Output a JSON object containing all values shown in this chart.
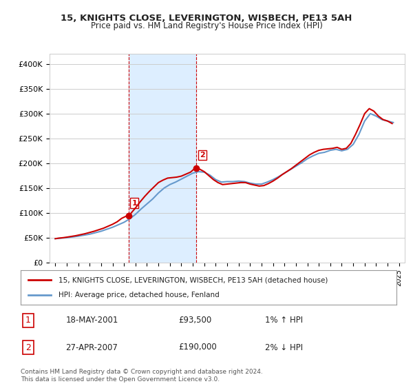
{
  "title": "15, KNIGHTS CLOSE, LEVERINGTON, WISBECH, PE13 5AH",
  "subtitle": "Price paid vs. HM Land Registry's House Price Index (HPI)",
  "legend_line1": "15, KNIGHTS CLOSE, LEVERINGTON, WISBECH, PE13 5AH (detached house)",
  "legend_line2": "HPI: Average price, detached house, Fenland",
  "footer1": "Contains HM Land Registry data © Crown copyright and database right 2024.",
  "footer2": "This data is licensed under the Open Government Licence v3.0.",
  "table_row1_num": "1",
  "table_row1_date": "18-MAY-2001",
  "table_row1_price": "£93,500",
  "table_row1_hpi": "1% ↑ HPI",
  "table_row2_num": "2",
  "table_row2_date": "27-APR-2007",
  "table_row2_price": "£190,000",
  "table_row2_hpi": "2% ↓ HPI",
  "sale1_year": 2001.38,
  "sale1_price": 93500,
  "sale2_year": 2007.32,
  "sale2_price": 190000,
  "shade_start": 2001.38,
  "shade_end": 2007.32,
  "ylim": [
    0,
    420000
  ],
  "xlim_start": 1994.5,
  "xlim_end": 2025.5,
  "hpi_color": "#6699cc",
  "price_color": "#cc0000",
  "shade_color": "#ddeeff",
  "background_color": "#ffffff",
  "grid_color": "#cccccc",
  "yticks": [
    0,
    50000,
    100000,
    150000,
    200000,
    250000,
    300000,
    350000,
    400000
  ],
  "ytick_labels": [
    "£0",
    "£50K",
    "£100K",
    "£150K",
    "£200K",
    "£250K",
    "£300K",
    "£350K",
    "£400K"
  ],
  "xticks": [
    1995,
    1996,
    1997,
    1998,
    1999,
    2000,
    2001,
    2002,
    2003,
    2004,
    2005,
    2006,
    2007,
    2008,
    2009,
    2010,
    2011,
    2012,
    2013,
    2014,
    2015,
    2016,
    2017,
    2018,
    2019,
    2020,
    2021,
    2022,
    2023,
    2024,
    2025
  ],
  "hpi_years": [
    1995.0,
    1995.5,
    1996.0,
    1996.5,
    1997.0,
    1997.5,
    1998.0,
    1998.5,
    1999.0,
    1999.5,
    2000.0,
    2000.5,
    2001.0,
    2001.5,
    2002.0,
    2002.5,
    2003.0,
    2003.5,
    2004.0,
    2004.5,
    2005.0,
    2005.5,
    2006.0,
    2006.5,
    2007.0,
    2007.5,
    2008.0,
    2008.5,
    2009.0,
    2009.5,
    2010.0,
    2010.5,
    2011.0,
    2011.5,
    2012.0,
    2012.5,
    2013.0,
    2013.5,
    2014.0,
    2014.5,
    2015.0,
    2015.5,
    2016.0,
    2016.5,
    2017.0,
    2017.5,
    2018.0,
    2018.5,
    2019.0,
    2019.5,
    2020.0,
    2020.5,
    2021.0,
    2021.5,
    2022.0,
    2022.5,
    2023.0,
    2023.5,
    2024.0,
    2024.5
  ],
  "hpi_values": [
    48000,
    49000,
    50000,
    51500,
    53000,
    55000,
    57000,
    60000,
    63000,
    67000,
    71000,
    76000,
    81000,
    88000,
    97000,
    108000,
    118000,
    128000,
    140000,
    150000,
    157000,
    162000,
    168000,
    174000,
    180000,
    183000,
    182000,
    176000,
    167000,
    162000,
    163000,
    163000,
    164000,
    163000,
    160000,
    158000,
    158000,
    162000,
    167000,
    173000,
    180000,
    187000,
    194000,
    201000,
    209000,
    215000,
    220000,
    222000,
    226000,
    228000,
    225000,
    228000,
    238000,
    258000,
    285000,
    300000,
    295000,
    288000,
    285000,
    282000
  ],
  "price_years": [
    1995.0,
    1995.3,
    1995.7,
    1996.0,
    1996.4,
    1996.8,
    1997.2,
    1997.6,
    1998.0,
    1998.4,
    1998.8,
    1999.2,
    1999.6,
    2000.0,
    2000.4,
    2000.8,
    2001.2,
    2001.6,
    2002.0,
    2002.4,
    2002.8,
    2003.2,
    2003.6,
    2004.0,
    2004.4,
    2004.8,
    2005.2,
    2005.6,
    2006.0,
    2006.4,
    2006.8,
    2007.2,
    2007.6,
    2008.0,
    2008.4,
    2008.8,
    2009.2,
    2009.6,
    2010.0,
    2010.4,
    2010.8,
    2011.2,
    2011.6,
    2012.0,
    2012.4,
    2012.8,
    2013.2,
    2013.6,
    2014.0,
    2014.4,
    2014.8,
    2015.2,
    2015.6,
    2016.0,
    2016.4,
    2016.8,
    2017.2,
    2017.6,
    2018.0,
    2018.4,
    2018.8,
    2019.2,
    2019.6,
    2020.0,
    2020.4,
    2020.8,
    2021.2,
    2021.6,
    2022.0,
    2022.4,
    2022.8,
    2023.2,
    2023.6,
    2024.0,
    2024.4
  ],
  "price_values": [
    48000,
    49000,
    50000,
    51000,
    52500,
    54000,
    56000,
    58000,
    60500,
    63000,
    66000,
    69000,
    73000,
    77000,
    82000,
    89000,
    93500,
    99000,
    110000,
    122000,
    133000,
    143000,
    152000,
    161000,
    166000,
    170000,
    171000,
    172000,
    174000,
    178000,
    182000,
    190000,
    188000,
    183000,
    175000,
    167000,
    161000,
    157000,
    158000,
    159000,
    160000,
    161000,
    161000,
    158000,
    156000,
    154000,
    155000,
    159000,
    164000,
    170000,
    177000,
    183000,
    189000,
    196000,
    203000,
    210000,
    217000,
    222000,
    226000,
    228000,
    229000,
    230000,
    232000,
    228000,
    230000,
    240000,
    258000,
    278000,
    300000,
    310000,
    305000,
    295000,
    288000,
    285000,
    280000
  ]
}
